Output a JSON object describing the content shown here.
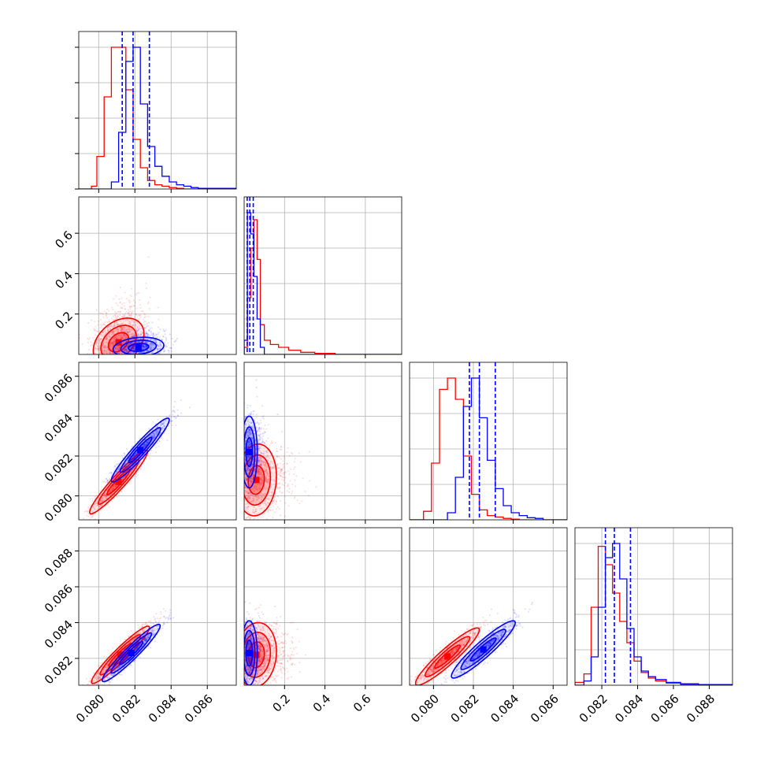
{
  "chart_data": {
    "type": "corner",
    "grid": true,
    "colors": {
      "series_a": "#0000ff",
      "series_b": "#ff0000",
      "quantile_lines": "#0000ff",
      "frame": "#000000",
      "grid": "#b0b0b0"
    },
    "series": [
      {
        "color": "#0000ff"
      },
      {
        "color": "#ff0000"
      }
    ],
    "parameters": [
      {
        "range": [
          0.0789,
          0.0876
        ],
        "ticks": [
          "0.080",
          "0.082",
          "0.084",
          "0.086"
        ],
        "tick_values": [
          0.08,
          0.082,
          0.084,
          0.086
        ]
      },
      {
        "range": [
          0.0,
          0.78
        ],
        "ticks": [
          "0.2",
          "0.4",
          "0.6"
        ],
        "tick_values": [
          0.2,
          0.4,
          0.6
        ]
      },
      {
        "range": [
          0.0788,
          0.0867
        ],
        "ticks": [
          "0.080",
          "0.082",
          "0.084",
          "0.086"
        ],
        "tick_values": [
          0.08,
          0.082,
          0.084,
          0.086
        ]
      },
      {
        "range": [
          0.0805,
          0.0893
        ],
        "ticks": [
          "0.082",
          "0.084",
          "0.086",
          "0.088"
        ],
        "tick_values": [
          0.082,
          0.084,
          0.086,
          0.088
        ]
      }
    ],
    "quantile_lines": [
      [
        0.0813,
        0.0819,
        0.0828
      ],
      [
        0.015,
        0.028,
        0.045
      ],
      [
        0.0818,
        0.0823,
        0.0831
      ],
      [
        0.0822,
        0.0827,
        0.0836
      ]
    ],
    "histograms": [
      {
        "bin_edges": [
          0.0787,
          0.0796,
          0.0799,
          0.0803,
          0.0807,
          0.0811,
          0.0815,
          0.0819,
          0.0823,
          0.0827,
          0.0831,
          0.0835,
          0.0839,
          0.0843,
          0.0847,
          0.0851,
          0.0855,
          0.0876
        ],
        "blue": [
          0.0,
          0.0,
          0.0,
          0.0,
          0.05,
          0.4,
          0.9,
          1.0,
          0.6,
          0.3,
          0.16,
          0.09,
          0.05,
          0.03,
          0.02,
          0.01,
          0.005
        ],
        "red": [
          0.0,
          0.02,
          0.23,
          0.65,
          1.0,
          1.0,
          0.7,
          0.35,
          0.15,
          0.06,
          0.03,
          0.02,
          0.01,
          0.005,
          0.0,
          0.0,
          0.0
        ]
      },
      {
        "bin_edges": [
          0.0,
          0.016,
          0.032,
          0.048,
          0.064,
          0.08,
          0.1,
          0.13,
          0.17,
          0.22,
          0.28,
          0.35,
          0.45,
          0.78
        ],
        "blue": [
          0.1,
          1.0,
          0.85,
          0.55,
          0.25,
          0.05,
          0.0,
          0.0,
          0.0,
          0.0,
          0.0,
          0.0,
          0.0
        ],
        "red": [
          0.05,
          0.4,
          0.75,
          0.95,
          0.67,
          0.21,
          0.1,
          0.07,
          0.05,
          0.03,
          0.015,
          0.008,
          0.0
        ]
      },
      {
        "bin_edges": [
          0.0788,
          0.0795,
          0.0799,
          0.0803,
          0.0807,
          0.0811,
          0.0815,
          0.0819,
          0.0823,
          0.0827,
          0.0831,
          0.0835,
          0.0839,
          0.0843,
          0.0847,
          0.0851,
          0.0855,
          0.0867
        ],
        "blue": [
          0.0,
          0.0,
          0.0,
          0.0,
          0.05,
          0.3,
          0.8,
          1.0,
          0.72,
          0.42,
          0.22,
          0.1,
          0.05,
          0.03,
          0.015,
          0.01,
          0.0
        ],
        "red": [
          0.0,
          0.06,
          0.4,
          0.92,
          1.0,
          0.85,
          0.45,
          0.18,
          0.07,
          0.03,
          0.02,
          0.01,
          0.005,
          0.0,
          0.0,
          0.0,
          0.0
        ]
      },
      {
        "bin_edges": [
          0.0805,
          0.081,
          0.0814,
          0.0818,
          0.0822,
          0.0826,
          0.083,
          0.0834,
          0.0838,
          0.0842,
          0.0846,
          0.085,
          0.0856,
          0.0864,
          0.0874,
          0.0893
        ],
        "blue": [
          0.0,
          0.03,
          0.2,
          0.55,
          0.9,
          1.0,
          0.75,
          0.4,
          0.2,
          0.1,
          0.06,
          0.04,
          0.02,
          0.01,
          0.005
        ],
        "red": [
          0.02,
          0.08,
          0.55,
          0.98,
          0.85,
          0.65,
          0.45,
          0.3,
          0.17,
          0.09,
          0.05,
          0.03,
          0.015,
          0.005,
          0.0
        ]
      }
    ],
    "correlations": {
      "1-0": {
        "blue": [
          0.0822,
          0.035,
          0.0007,
          0.025,
          0.2
        ],
        "red": [
          0.0811,
          0.06,
          0.0007,
          0.06,
          0.35
        ]
      },
      "2-0": {
        "blue": [
          0.0823,
          0.0823,
          0.0008,
          0.0008,
          0.95
        ],
        "red": [
          0.0811,
          0.0807,
          0.0008,
          0.0008,
          0.95
        ]
      },
      "2-1": {
        "blue": [
          0.025,
          0.0822,
          0.02,
          0.0009,
          0.0
        ],
        "red": [
          0.06,
          0.0808,
          0.05,
          0.0009,
          0.1
        ]
      },
      "3-0": {
        "blue": [
          0.0818,
          0.0823,
          0.0008,
          0.0008,
          0.95
        ],
        "red": [
          0.0812,
          0.0822,
          0.0008,
          0.0008,
          0.95
        ]
      },
      "3-1": {
        "blue": [
          0.025,
          0.0823,
          0.02,
          0.0009,
          0.0
        ],
        "red": [
          0.06,
          0.0822,
          0.05,
          0.0009,
          0.1
        ]
      },
      "3-2": {
        "blue": [
          0.0825,
          0.0825,
          0.0008,
          0.0008,
          0.93
        ],
        "red": [
          0.0807,
          0.0821,
          0.0008,
          0.0008,
          0.93
        ]
      }
    }
  }
}
